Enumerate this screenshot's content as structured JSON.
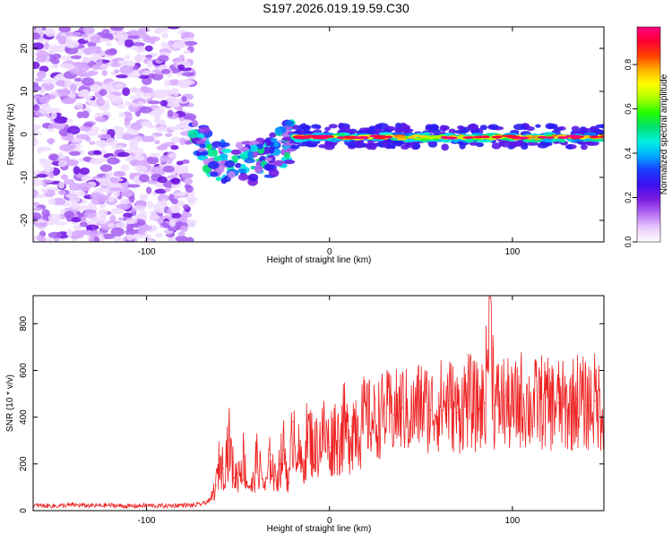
{
  "figure_title": "S197.2026.019.19.59.C30",
  "chart_data": [
    {
      "type": "heatmap",
      "title": "S197.2026.019.19.59.C30",
      "xlabel": "Height of straight line (km)",
      "ylabel": "Frequency (Hz)",
      "xlim": [
        -162,
        150
      ],
      "ylim": [
        -25,
        25
      ],
      "x_ticks": [
        -100,
        0,
        100
      ],
      "y_ticks": [
        -20,
        -10,
        0,
        10,
        20
      ],
      "x_tick_labels": [
        "-100",
        "0",
        "100"
      ],
      "y_tick_labels": [
        "-20",
        "-10",
        "0",
        "10",
        "20"
      ],
      "colorbar": {
        "label": "Normalized spectral amplitude",
        "range": [
          0,
          0.97
        ],
        "ticks": [
          0.0,
          0.2,
          0.4,
          0.6,
          0.8
        ],
        "tick_labels": [
          "0.0",
          "0.2",
          "0.4",
          "0.6",
          "0.8"
        ],
        "colormap": [
          "#ffffff",
          "#e9c8ff",
          "#b36bf0",
          "#7a1be0",
          "#3b10f0",
          "#1a3cff",
          "#00aaff",
          "#00f0e0",
          "#00e070",
          "#22ff00",
          "#aaff00",
          "#ffff00",
          "#ffb000",
          "#ff4000",
          "#ff0033",
          "#ff0080"
        ]
      },
      "regions": [
        {
          "name": "noise",
          "x_range": [
            -162,
            -75
          ],
          "freq_range": [
            -25,
            25
          ],
          "amplitude": 0.1
        },
        {
          "name": "transition",
          "x_range": [
            -75,
            -20
          ],
          "freq_center": -3,
          "amplitude": 0.35
        },
        {
          "name": "signal band",
          "x_range": [
            -20,
            150
          ],
          "freq_center": 0,
          "amplitude": 0.85
        }
      ]
    },
    {
      "type": "line",
      "xlabel": "Height of straight line (km)",
      "ylabel": "SNR (10 * v/v)",
      "xlim": [
        -162,
        150
      ],
      "ylim": [
        0,
        920
      ],
      "x_ticks": [
        -100,
        0,
        100
      ],
      "y_ticks": [
        0,
        200,
        400,
        600,
        800
      ],
      "x_tick_labels": [
        "-100",
        "0",
        "100"
      ],
      "y_tick_labels": [
        "0",
        "200",
        "400",
        "600",
        "800"
      ],
      "line_color": "#ee2222",
      "series": [
        {
          "name": "SNR",
          "x": [
            -162,
            -150,
            -140,
            -130,
            -120,
            -110,
            -100,
            -90,
            -80,
            -75,
            -70,
            -65,
            -62,
            -60,
            -58,
            -55,
            -52,
            -50,
            -47,
            -45,
            -42,
            -40,
            -37,
            -35,
            -32,
            -30,
            -27,
            -25,
            -22,
            -20,
            -17,
            -15,
            -12,
            -10,
            -8,
            -5,
            -3,
            0,
            3,
            5,
            8,
            10,
            12,
            15,
            18,
            20,
            25,
            30,
            35,
            40,
            45,
            50,
            55,
            60,
            65,
            70,
            75,
            80,
            85,
            88,
            90,
            95,
            100,
            105,
            110,
            115,
            120,
            125,
            130,
            135,
            140,
            145,
            150
          ],
          "values": [
            22,
            20,
            24,
            21,
            23,
            19,
            22,
            20,
            24,
            22,
            28,
            45,
            110,
            220,
            180,
            300,
            140,
            160,
            230,
            120,
            100,
            220,
            150,
            90,
            240,
            130,
            200,
            260,
            120,
            380,
            250,
            170,
            330,
            300,
            260,
            310,
            330,
            270,
            340,
            300,
            360,
            310,
            360,
            390,
            360,
            400,
            380,
            420,
            410,
            440,
            400,
            460,
            430,
            450,
            470,
            420,
            480,
            440,
            460,
            910,
            450,
            470,
            430,
            480,
            440,
            470,
            450,
            460,
            430,
            480,
            450,
            470,
            440
          ]
        }
      ]
    }
  ]
}
